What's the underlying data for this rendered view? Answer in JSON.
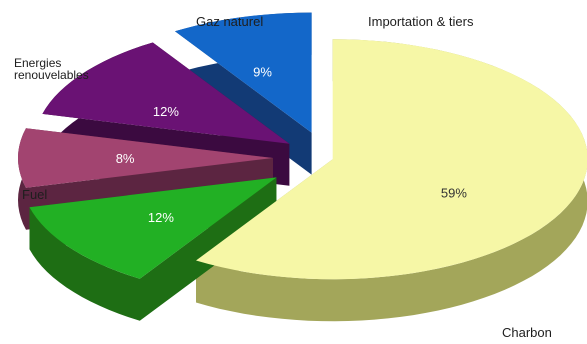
{
  "chart_data": {
    "type": "pie",
    "slices": [
      {
        "label": "Charbon",
        "value": 59,
        "value_label": "59%",
        "color": "#f6f7a6",
        "side": "#a3a65a",
        "text": "#333333"
      },
      {
        "label": "Fuel",
        "value": 12,
        "value_label": "12%",
        "color": "#22b024",
        "side": "#1e6e14",
        "text": "#ffffff"
      },
      {
        "label": "Energies renouvelables",
        "value": 8,
        "value_label": "8%",
        "color": "#a24470",
        "side": "#5c2541",
        "text": "#ffffff"
      },
      {
        "label": "Gaz naturel",
        "value": 12,
        "value_label": "12%",
        "color": "#6a1274",
        "side": "#3b0a40",
        "text": "#ffffff"
      },
      {
        "label": "Importation & tiers",
        "value": 9,
        "value_label": "9%",
        "color": "#1367c9",
        "side": "#123a75",
        "text": "#ffffff"
      }
    ]
  }
}
